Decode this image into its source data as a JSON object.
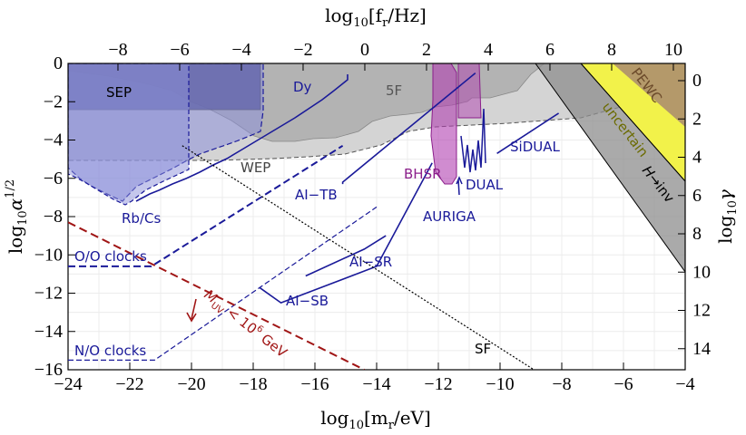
{
  "chart_data": {
    "type": "line",
    "title": "",
    "xlabel": "log10[m_r/eV]",
    "ylabel": "log10 α^1/2",
    "top_label": "log10[f_r/Hz]",
    "right_label": "log10 γ",
    "xlim": [
      -24,
      -4
    ],
    "ylim": [
      -16,
      0
    ],
    "top_lim": [
      -9.617,
      10.383
    ],
    "right_lim": [
      -0.9,
      15.1
    ],
    "x_ticks": [
      "−24",
      "−22",
      "−20",
      "−18",
      "−16",
      "−14",
      "−12",
      "−10",
      "−8",
      "−6",
      "−4"
    ],
    "y_ticks": [
      "0",
      "−2",
      "−4",
      "−6",
      "−8",
      "−10",
      "−12",
      "−14",
      "−16"
    ],
    "top_ticks": [
      "−8",
      "−6",
      "−4",
      "−2",
      "0",
      "2",
      "4",
      "6",
      "8",
      "10"
    ],
    "right_ticks": [
      "0",
      "2",
      "4",
      "6",
      "8",
      "10",
      "12",
      "14"
    ],
    "grid": true,
    "series": [
      {
        "name": "O/O clocks",
        "style": "dashed",
        "x": [
          -24,
          -21.3,
          -15.1
        ],
        "y": [
          -10.6,
          -10.6,
          -4.3
        ]
      },
      {
        "name": "N/O clocks",
        "style": "dashed",
        "x": [
          -24,
          -21.2,
          -14
        ],
        "y": [
          -15.5,
          -15.5,
          -7.5
        ]
      },
      {
        "name": "AI-TB",
        "style": "solid",
        "x": [
          -15.1,
          -15.1,
          -10.8
        ],
        "y": [
          -6.3,
          -6.2,
          -0.5
        ]
      },
      {
        "name": "AI-SB",
        "style": "solid",
        "x": [
          -17.8,
          -17.1,
          -14,
          -12.2
        ],
        "y": [
          -11.7,
          -12.5,
          -10.6,
          -5.2
        ]
      },
      {
        "name": "AI-SR",
        "style": "solid",
        "x": [
          -16.3,
          -14.4,
          -13.7
        ],
        "y": [
          -11.1,
          -9.7,
          -9.0
        ]
      },
      {
        "name": "SiDUAL",
        "style": "solid",
        "x": [
          -10.1,
          -8.1
        ],
        "y": [
          -4.7,
          -2.6
        ]
      },
      {
        "name": "SF",
        "style": "dotted",
        "x": [
          -20.3,
          -8.9
        ],
        "y": [
          -4.3,
          -16
        ]
      },
      {
        "name": "M_UV < 10^6 GeV",
        "style": "dashed",
        "x": [
          -24,
          -14.4
        ],
        "y": [
          -8.3,
          -16
        ]
      }
    ],
    "regions": [
      {
        "name": "SEP",
        "x": [
          -24,
          -15.4
        ],
        "y_top": 0,
        "y_bottom": -2.45
      },
      {
        "name": "5F",
        "x": [
          -24,
          -4
        ],
        "y_top": 0,
        "y_bottom": -3.5
      },
      {
        "name": "WEP",
        "x": [
          -24,
          -4
        ],
        "y_top": 0,
        "y_bottom": -5.1
      },
      {
        "name": "Dy",
        "x": [
          -24,
          -15.2
        ],
        "y_top": 0,
        "y_bottom": -6.6
      },
      {
        "name": "Rb/Cs",
        "x": [
          -24,
          -20.3
        ],
        "y_top": 0,
        "y_bottom": -7.3
      },
      {
        "name": "BHSR",
        "x": [
          -12.4,
          -11.6
        ],
        "y_top": 0,
        "y_bottom": -6.3
      },
      {
        "name": "PEWC",
        "x": [
          -6.3,
          -4
        ],
        "y_top": 0,
        "y_bottom": -2.2
      },
      {
        "name": "uncertain",
        "x": [
          -7.1,
          -4
        ],
        "y_top": 0,
        "y_bottom": -6.2
      },
      {
        "name": "H→inv",
        "x": [
          -8.6,
          -4
        ],
        "y_top": 0,
        "y_bottom": -10.6
      }
    ],
    "annotations": [
      "SEP",
      "Dy",
      "5F",
      "WEP",
      "Rb/Cs",
      "O/O clocks",
      "N/O clocks",
      "AI−TB",
      "AI−SB",
      "AI−SR",
      "BHSR",
      "DUAL",
      "AURIGA",
      "SiDUAL",
      "SF",
      "PEWC",
      "uncertain",
      "H→inv",
      "M_UV < 10^6 GeV"
    ]
  },
  "labels": {
    "x_prefix": "log",
    "x_sub": "10",
    "x_body": "[m",
    "x_sub2": "r",
    "x_suffix": "/eV]",
    "top_prefix": "log",
    "top_sub": "10",
    "top_body": "[f",
    "top_sub2": "r",
    "top_suffix": "/Hz]",
    "y_prefix": "log",
    "y_sub": "10",
    "y_body": "α",
    "y_sup": "1/2",
    "r_prefix": "log",
    "r_sub": "10",
    "r_body": "γ",
    "sep": "SEP",
    "dy": "Dy",
    "f5": "5F",
    "wep": "WEP",
    "rbcs": "Rb/Cs",
    "oo": "O/O clocks",
    "no": "N/O clocks",
    "aitb": "AI−TB",
    "aisb": "AI−SB",
    "aisr": "AI−SR",
    "bhsr": "BHSR",
    "dual": "DUAL",
    "auriga": "AURIGA",
    "sidual": "SiDUAL",
    "sf": "SF",
    "pewc": "PEWC",
    "uncertain": "uncertain",
    "hinv_h": "H",
    "hinv_rest": "→inv",
    "muv_m": "M",
    "muv_sub": "UV",
    "muv_rest": " < 10",
    "muv_sup": "6",
    "muv_tail": " GeV"
  },
  "colors": {
    "blue": "#1a1a99",
    "blue_fill": "#8c8fd9",
    "blue_dark": "#3b3c7a",
    "magenta": "#b040b0",
    "bhsr_text": "#8b1f8b",
    "dark_red": "#a01515",
    "grey_light": "#d4d4d4",
    "grey_mid": "#b3b3b3",
    "grey_dark": "#8e8e8e",
    "yellow": "#f2f24a",
    "brown": "#a98a70"
  }
}
